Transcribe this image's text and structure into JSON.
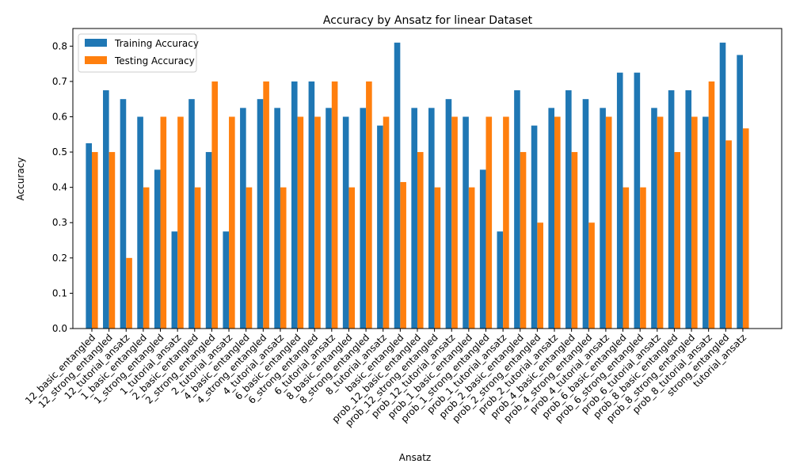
{
  "chart_data": {
    "type": "bar",
    "title": "Accuracy by Ansatz for linear Dataset",
    "xlabel": "Ansatz",
    "ylabel": "Accuracy",
    "ylim": [
      0,
      0.85
    ],
    "yticks": [
      0.0,
      0.1,
      0.2,
      0.3,
      0.4,
      0.5,
      0.6,
      0.7,
      0.8
    ],
    "ytick_labels": [
      "0.0",
      "0.1",
      "0.2",
      "0.3",
      "0.4",
      "0.5",
      "0.6",
      "0.7",
      "0.8"
    ],
    "legend_position": "top-left",
    "categories": [
      "12_basic_entangled",
      "12_strong_entangled",
      "12_tutorial_ansatz",
      "1_basic_entangled",
      "1_strong_entangled",
      "1_tutorial_ansatz",
      "2_basic_entangled",
      "2_strong_entangled",
      "2_tutorial_ansatz",
      "4_basic_entangled",
      "4_strong_entangled",
      "4_tutorial_ansatz",
      "6_basic_entangled",
      "6_strong_entangled",
      "6_tutorial_ansatz",
      "8_basic_entangled",
      "8_strong_entangled",
      "8_tutorial_ansatz",
      "basic_entangled",
      "prob_12_basic_entangled",
      "prob_12_strong_entangled",
      "prob_12_tutorial_ansatz",
      "prob_1_basic_entangled",
      "prob_1_strong_entangled",
      "prob_1_tutorial_ansatz",
      "prob_2_basic_entangled",
      "prob_2_strong_entangled",
      "prob_2_tutorial_ansatz",
      "prob_4_basic_entangled",
      "prob_4_strong_entangled",
      "prob_4_tutorial_ansatz",
      "prob_6_basic_entangled",
      "prob_6_strong_entangled",
      "prob_6_tutorial_ansatz",
      "prob_8_basic_entangled",
      "prob_8_strong_entangled",
      "prob_8_tutorial_ansatz",
      "strong_entangled",
      "tutorial_ansatz"
    ],
    "series": [
      {
        "name": "Training Accuracy",
        "color": "#1f77b4",
        "values": [
          0.525,
          0.675,
          0.65,
          0.6,
          0.45,
          0.275,
          0.65,
          0.5,
          0.275,
          0.625,
          0.65,
          0.625,
          0.7,
          0.7,
          0.625,
          0.6,
          0.625,
          0.575,
          0.81,
          0.625,
          0.625,
          0.65,
          0.6,
          0.45,
          0.275,
          0.675,
          0.575,
          0.625,
          0.675,
          0.65,
          0.625,
          0.725,
          0.725,
          0.625,
          0.675,
          0.675,
          0.6,
          0.81,
          0.775
        ]
      },
      {
        "name": "Testing Accuracy",
        "color": "#ff7f0e",
        "values": [
          0.5,
          0.5,
          0.2,
          0.4,
          0.6,
          0.6,
          0.4,
          0.7,
          0.6,
          0.4,
          0.7,
          0.4,
          0.6,
          0.6,
          0.7,
          0.4,
          0.7,
          0.6,
          0.415,
          0.5,
          0.4,
          0.6,
          0.4,
          0.6,
          0.6,
          0.5,
          0.3,
          0.6,
          0.5,
          0.3,
          0.6,
          0.4,
          0.4,
          0.6,
          0.5,
          0.6,
          0.7,
          0.533,
          0.567
        ]
      }
    ]
  }
}
